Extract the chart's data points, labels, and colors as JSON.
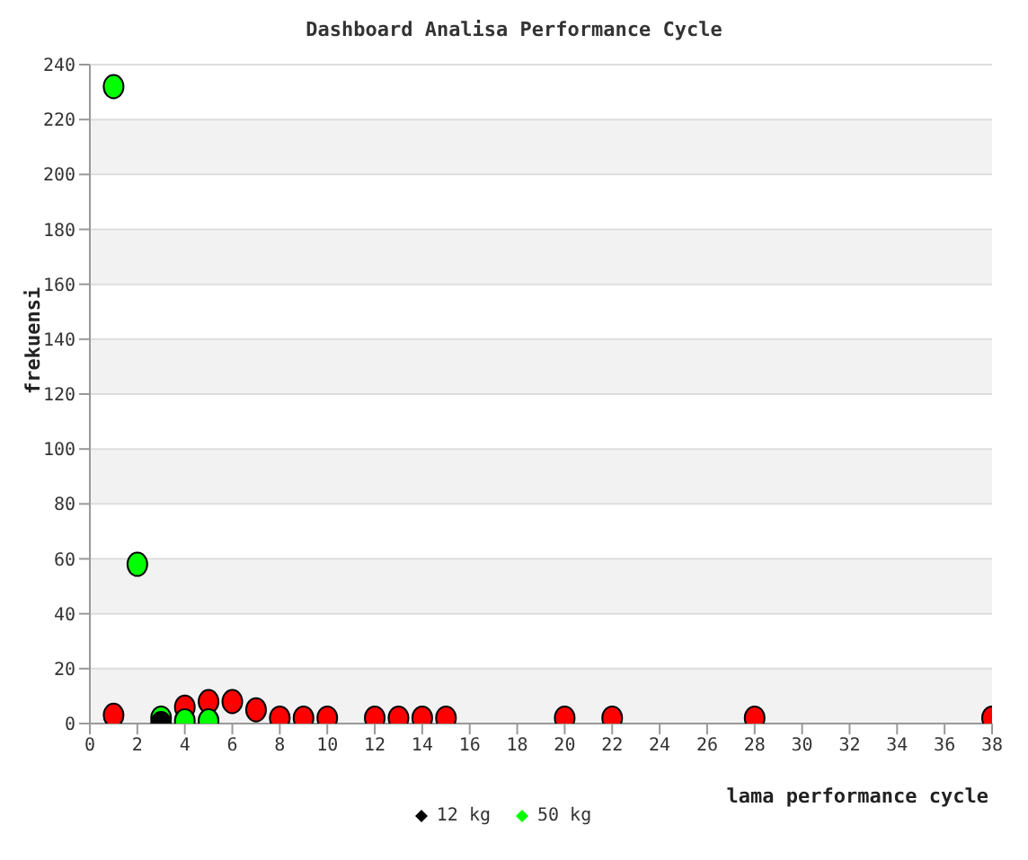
{
  "chart_data": {
    "type": "scatter",
    "title": "Dashboard Analisa Performance Cycle",
    "xlabel": "lama performance cycle",
    "ylabel": "frekuensi",
    "xlim": [
      0,
      38
    ],
    "xticks": [
      0,
      2,
      4,
      6,
      8,
      10,
      12,
      14,
      16,
      18,
      20,
      22,
      24,
      26,
      28,
      30,
      32,
      34,
      36,
      38
    ],
    "ylim": [
      0,
      240
    ],
    "yticks": [
      0,
      20,
      40,
      60,
      80,
      100,
      120,
      140,
      160,
      180,
      200,
      220,
      240
    ],
    "grid": "y",
    "legend": "bottom",
    "marker": "circle",
    "series": [
      {
        "color": "#ff0000",
        "x": [
          1,
          4,
          5,
          6,
          7,
          8,
          9,
          10,
          12,
          13,
          14,
          15,
          20,
          22,
          28,
          38
        ],
        "values": [
          3,
          6,
          8,
          8,
          5,
          2,
          2,
          2,
          2,
          2,
          2,
          2,
          2,
          2,
          2,
          2
        ]
      },
      {
        "name": "12 kg",
        "color": "#000000",
        "x": [
          3
        ],
        "values": [
          0
        ]
      },
      {
        "name": "50 kg",
        "color": "#00ff00",
        "x": [
          1,
          2,
          3,
          4,
          5
        ],
        "values": [
          232,
          58,
          2,
          1,
          1
        ]
      }
    ]
  }
}
